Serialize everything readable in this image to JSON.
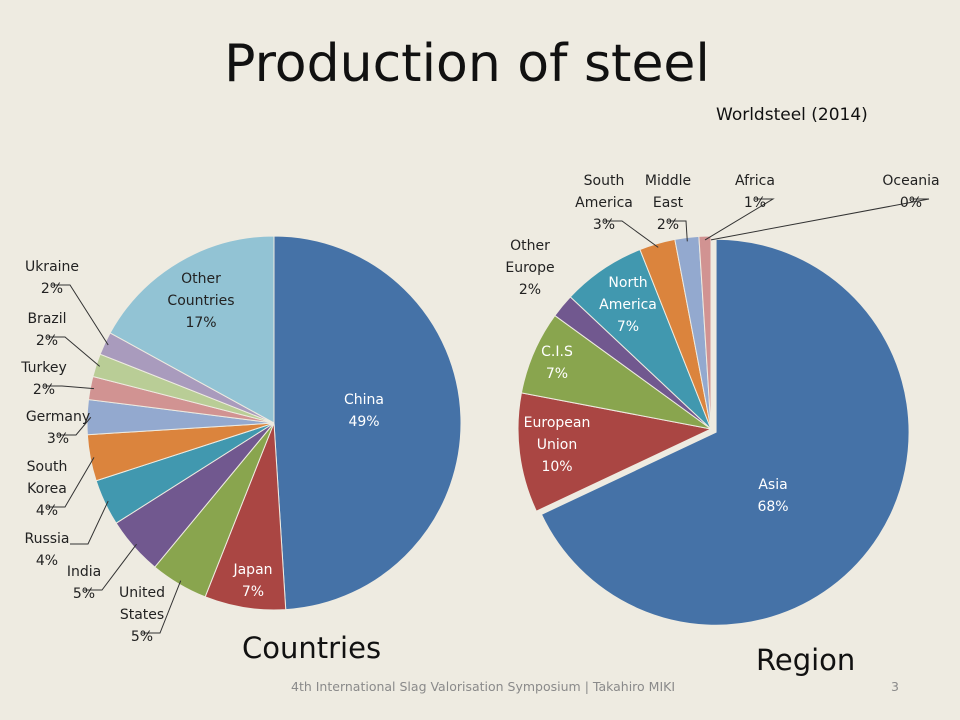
{
  "slide": {
    "title": "Production of steel",
    "source": "Worldsteel (2014)",
    "footer": "4th International Slag Valorisation Symposium | Takahiro MIKI",
    "page_number": "3"
  },
  "chart_data": [
    {
      "type": "pie",
      "title": "Countries",
      "unit": "%",
      "slices": [
        {
          "label": "China",
          "value": 49,
          "color": "#4572a7"
        },
        {
          "label": "Japan",
          "value": 7,
          "color": "#aa4643"
        },
        {
          "label": "United States",
          "value": 5,
          "color": "#89a54e"
        },
        {
          "label": "India",
          "value": 5,
          "color": "#71588f"
        },
        {
          "label": "Russia",
          "value": 4,
          "color": "#4198af"
        },
        {
          "label": "South Korea",
          "value": 4,
          "color": "#db843d"
        },
        {
          "label": "Germany",
          "value": 3,
          "color": "#93a9cf"
        },
        {
          "label": "Turkey",
          "value": 2,
          "color": "#d19392"
        },
        {
          "label": "Brazil",
          "value": 2,
          "color": "#b9cd96"
        },
        {
          "label": "Ukraine",
          "value": 2,
          "color": "#a99bbd"
        },
        {
          "label": "Other Countries",
          "value": 17,
          "color": "#92c3d4"
        }
      ]
    },
    {
      "type": "pie",
      "title": "Region",
      "unit": "%",
      "slices": [
        {
          "label": "Asia",
          "value": 68,
          "color": "#4572a7"
        },
        {
          "label": "European Union",
          "value": 10,
          "color": "#aa4643"
        },
        {
          "label": "C.I.S",
          "value": 7,
          "color": "#89a54e"
        },
        {
          "label": "Other Europe",
          "value": 2,
          "color": "#71588f"
        },
        {
          "label": "North America",
          "value": 7,
          "color": "#4198af"
        },
        {
          "label": "South America",
          "value": 3,
          "color": "#db843d"
        },
        {
          "label": "Middle East",
          "value": 2,
          "color": "#93a9cf"
        },
        {
          "label": "Africa",
          "value": 1,
          "color": "#d19392"
        },
        {
          "label": "Oceania",
          "value": 0,
          "color": "#b9cd96"
        }
      ]
    }
  ]
}
